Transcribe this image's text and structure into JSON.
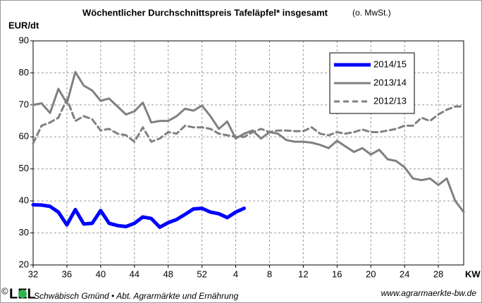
{
  "chart_data": {
    "type": "line",
    "title": "Wöchentlicher Durchschnittspreis  Tafeläpfel*  insgesamt",
    "subtitle": "(o. MwSt.)",
    "y_label": "EUR/dt",
    "x_label": "KW",
    "categories": [
      "32",
      null,
      null,
      null,
      "36",
      null,
      null,
      null,
      "40",
      null,
      null,
      null,
      "44",
      null,
      null,
      null,
      "48",
      null,
      null,
      null,
      "52",
      null,
      null,
      null,
      "4",
      null,
      null,
      null,
      "8",
      null,
      null,
      null,
      "12",
      null,
      null,
      null,
      "16",
      null,
      null,
      null,
      "20",
      null,
      null,
      null,
      "24",
      null,
      null,
      null,
      "28",
      null,
      null,
      null
    ],
    "ylim": [
      20,
      90
    ],
    "yticks": [
      20,
      30,
      40,
      50,
      60,
      70,
      80,
      90
    ],
    "grid": true,
    "legend": "upper right",
    "series": [
      {
        "name": "2014/15",
        "color": "#0000ff",
        "line_width": 5,
        "dashed": false,
        "values": [
          38.8,
          38.7,
          38.3,
          36.5,
          32.5,
          37.3,
          32.8,
          33,
          37,
          33,
          32.3,
          32,
          33,
          35,
          34.5,
          31.8,
          33.2,
          34.2,
          35.8,
          37.5,
          37.7,
          36.5,
          36,
          34.8,
          36.5,
          37.7,
          null,
          null,
          null,
          null,
          null,
          null,
          null,
          null,
          null,
          null,
          null,
          null,
          null,
          null,
          null,
          null,
          null,
          null,
          null,
          null,
          null,
          null,
          null,
          null,
          null,
          null
        ]
      },
      {
        "name": "2013/14",
        "color": "#808080",
        "line_width": 3,
        "dashed": false,
        "values": [
          70,
          70.5,
          67.5,
          75,
          70.5,
          80.3,
          76,
          74.5,
          71.3,
          72,
          69.5,
          67,
          68,
          70.7,
          64.5,
          65,
          65,
          66.5,
          68.8,
          68.2,
          69.8,
          66.5,
          62.5,
          64.8,
          59.5,
          61,
          62,
          59.5,
          61.5,
          61,
          59,
          58.5,
          58.5,
          58.2,
          57.5,
          56.5,
          58.8,
          57,
          55.3,
          56.5,
          54.5,
          56,
          53,
          52.5,
          50.5,
          47,
          46.5,
          47,
          45,
          47,
          40,
          36.5
        ]
      },
      {
        "name": "2012/13",
        "color": "#808080",
        "line_width": 3,
        "dashed": true,
        "values": [
          58,
          63.5,
          64.5,
          66,
          71.8,
          65,
          66.5,
          65.5,
          62,
          62.5,
          61,
          60.5,
          58.5,
          63,
          58.5,
          59.5,
          61.5,
          61,
          63.5,
          63,
          63,
          62.5,
          61,
          60.5,
          60,
          60,
          61.5,
          62.5,
          61.5,
          62,
          62,
          61.8,
          61.8,
          63,
          61,
          60.5,
          61.5,
          61,
          61.5,
          62.3,
          61.5,
          61.5,
          62,
          62.5,
          63.5,
          63.5,
          66,
          65,
          67,
          68.5,
          69.5,
          69.5
        ]
      }
    ]
  },
  "footer": {
    "copyright": "©",
    "logo": "LEL",
    "institution": "Schwäbisch Gmünd • Abt. Agrarmärkte und Ernährung",
    "website": "www.agrarmaerkte-bw.de"
  }
}
